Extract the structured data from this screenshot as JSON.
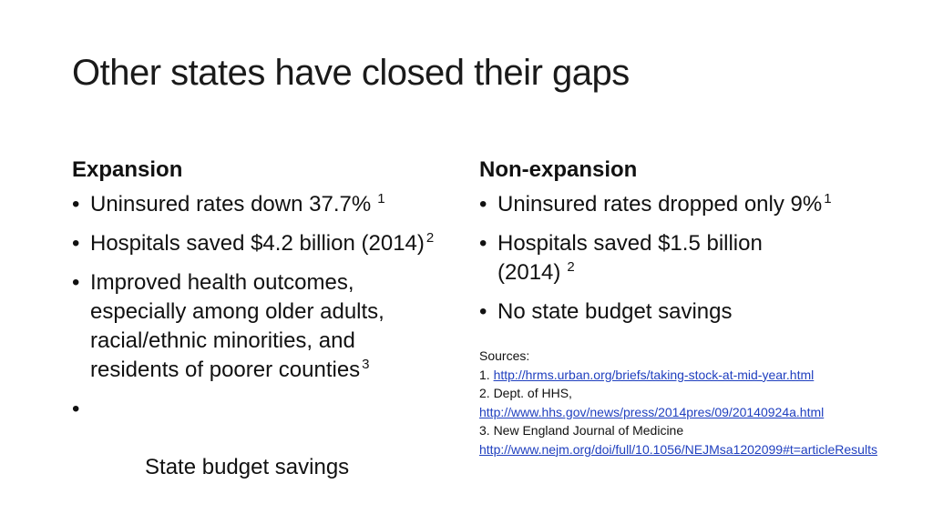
{
  "title": "Other states have closed their gaps",
  "left": {
    "heading": "Expansion",
    "bullets": [
      {
        "text": "Uninsured rates down 37.7%",
        "sup": "1"
      },
      {
        "text": "Hospitals saved $4.2 billion (2014)",
        "sup": "2"
      },
      {
        "text": "Improved health outcomes, especially among older adults, racial/ethnic minorities, and residents of poorer counties",
        "sup": "3"
      },
      {
        "text": " State budget savings",
        "sup": ""
      }
    ]
  },
  "right": {
    "heading": "Non-expansion",
    "bullets": [
      {
        "text": "Uninsured rates dropped only 9%",
        "sup": "1"
      },
      {
        "text": "Hospitals saved $1.5 billion (2014)",
        "sup": "2"
      },
      {
        "text": "No state budget savings",
        "sup": ""
      }
    ]
  },
  "sources": {
    "label": "Sources:",
    "s1_prefix": "1. ",
    "s1_url": "http://hrms.urban.org/briefs/taking-stock-at-mid-year.html",
    "s2_label": "2. Dept. of HHS,",
    "s2_url": "http://www.hhs.gov/news/press/2014pres/09/20140924a.html",
    "s3_label": "3. New England Journal of Medicine",
    "s3_url": "http://www.nejm.org/doi/full/10.1056/NEJMsa1202099#t=articleResults"
  },
  "bullet_char": "•"
}
